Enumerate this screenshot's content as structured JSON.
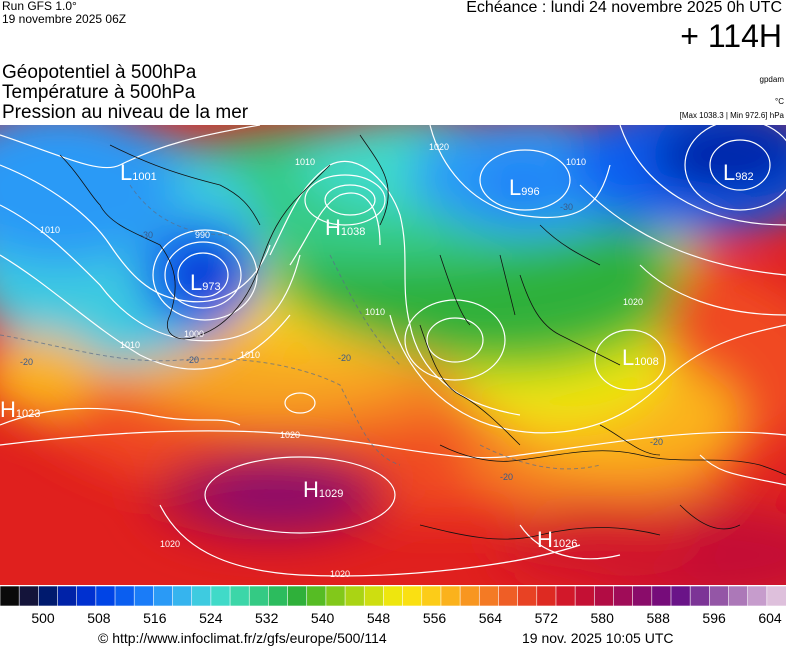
{
  "header": {
    "run": "Run GFS 1.0°",
    "run_date": "19 novembre 2025 06Z",
    "echeance": "Echéance : lundi 24 novembre 2025 0h UTC",
    "lead": "+ 114H",
    "titles": [
      "Géopotentiel à 500hPa",
      "Température à 500hPa",
      "Pression au niveau de la mer"
    ],
    "unit_geo": "gpdam",
    "unit_temp": "°C",
    "extremes": "[Max 1038.3 | Min 972.6] hPa"
  },
  "map": {
    "pressure_centers": [
      {
        "type": "L",
        "value": "1001"
      },
      {
        "type": "L",
        "value": "973"
      },
      {
        "type": "H",
        "value": "1038"
      },
      {
        "type": "L",
        "value": "996"
      },
      {
        "type": "L",
        "value": "982"
      },
      {
        "type": "H",
        "value": "1023"
      },
      {
        "type": "H",
        "value": "1029"
      },
      {
        "type": "H",
        "value": "1026"
      },
      {
        "type": "L",
        "value": "1008"
      }
    ],
    "isobar_labels": [
      "1010",
      "1000",
      "990",
      "1010",
      "1010",
      "1020",
      "1010",
      "1020",
      "1020",
      "1010",
      "1020",
      "1020",
      "1010"
    ],
    "temp_labels": [
      "-30",
      "-20",
      "-20",
      "-20",
      "-20",
      "-30",
      "-20"
    ]
  },
  "colorbar": {
    "ticks": [
      "500",
      "508",
      "516",
      "524",
      "532",
      "540",
      "548",
      "556",
      "564",
      "572",
      "580",
      "588",
      "596",
      "604"
    ],
    "colors": [
      "#0a0a0a",
      "#14143a",
      "#001a6e",
      "#0022a8",
      "#0030d0",
      "#0044e6",
      "#0a5ef0",
      "#1a7cf8",
      "#2a9af6",
      "#36b4ee",
      "#3ecbe0",
      "#40dac8",
      "#3cd6a8",
      "#34ca84",
      "#2cbc5e",
      "#2fb03a",
      "#56bc24",
      "#82c81a",
      "#aad414",
      "#cede10",
      "#eee60e",
      "#fae012",
      "#fccc18",
      "#fbb21c",
      "#f89620",
      "#f47a24",
      "#ef5e26",
      "#e84224",
      "#de2a22",
      "#d2182a",
      "#c41034",
      "#b20c44",
      "#a00c58",
      "#8a0c6a",
      "#760c7a",
      "#6a1488",
      "#7c3496",
      "#9456a6",
      "#ac78b8",
      "#c69ccc",
      "#dec0dc"
    ]
  },
  "footer": {
    "copyright": "© http://www.infoclimat.fr/z/gfs/europe/500/114",
    "timestamp": "19 nov. 2025 10:05 UTC"
  }
}
